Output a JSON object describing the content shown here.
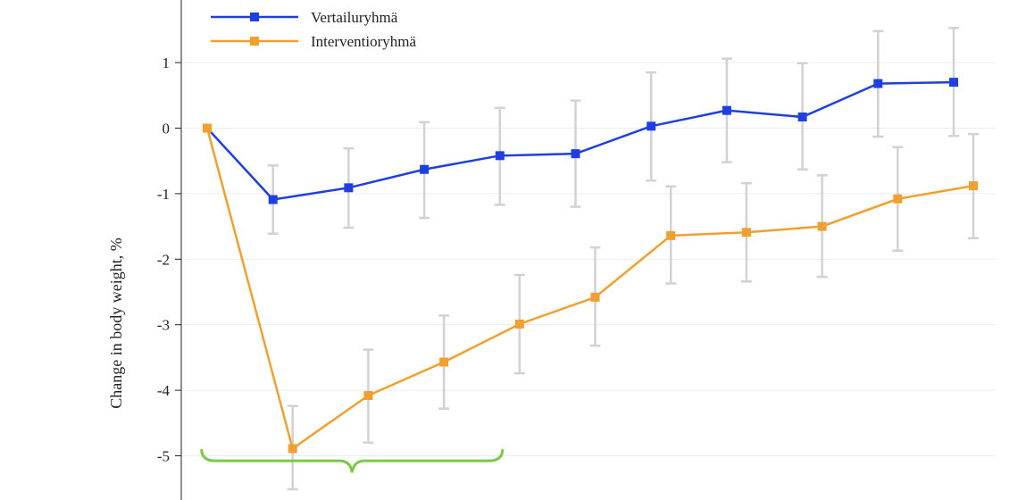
{
  "chart_data": {
    "type": "line",
    "title": "",
    "xlabel": "",
    "ylabel": "Change in body weight, %",
    "ylim": [
      -5.6,
      2
    ],
    "yticks": [
      "1",
      "0",
      "-1",
      "-2",
      "-3",
      "-4",
      "-5"
    ],
    "ytick_values": [
      1,
      0,
      -1,
      -2,
      -3,
      -4,
      -5
    ],
    "grid": true,
    "legend_position": "top-left",
    "series": [
      {
        "name": "Vertailuryhmä",
        "color": "#1f3fe0",
        "marker": "square",
        "values": [
          0,
          -1.09,
          -0.91,
          -0.63,
          -0.42,
          -0.39,
          0.03,
          0.27,
          0.17,
          0.68,
          0.7
        ],
        "error_low": [
          null,
          -1.61,
          -1.52,
          -1.37,
          -1.17,
          -1.2,
          -0.8,
          -0.52,
          -0.63,
          -0.13,
          -0.12
        ],
        "error_high": [
          null,
          -0.57,
          -0.31,
          0.09,
          0.31,
          0.42,
          0.85,
          1.06,
          0.99,
          1.48,
          1.53
        ]
      },
      {
        "name": "Interventioryhmä",
        "color": "#f0a030",
        "marker": "square",
        "values": [
          0,
          -4.89,
          -4.08,
          -3.57,
          -2.99,
          -2.58,
          -1.64,
          -1.59,
          -1.5,
          -1.08,
          -0.88
        ],
        "error_low": [
          null,
          -5.51,
          -4.8,
          -4.28,
          -3.74,
          -3.32,
          -2.37,
          -2.34,
          -2.27,
          -1.87,
          -1.68
        ],
        "error_high": [
          null,
          -4.24,
          -3.38,
          -2.86,
          -2.24,
          -1.82,
          -0.89,
          -0.84,
          -0.72,
          -0.29,
          -0.09
        ]
      }
    ],
    "errorbar_color": "#d2d2d2",
    "annotation": {
      "type": "curly-brace",
      "color": "#7cc94a",
      "spans_points": [
        1,
        4
      ],
      "y_value": -5.05
    }
  }
}
